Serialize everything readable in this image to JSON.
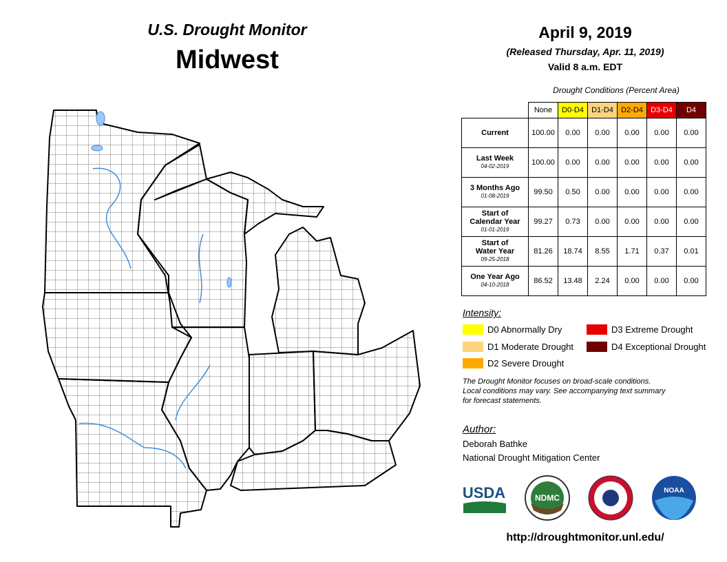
{
  "header": {
    "title": "U.S. Drought Monitor",
    "region": "Midwest"
  },
  "date": {
    "date": "April 9, 2019",
    "released": "(Released Thursday, Apr. 11, 2019)",
    "valid": "Valid 8 a.m. EDT"
  },
  "table": {
    "caption": "Drought Conditions (Percent Area)",
    "columns": [
      "None",
      "D0-D4",
      "D1-D4",
      "D2-D4",
      "D3-D4",
      "D4"
    ],
    "column_colors": [
      "#ffffff",
      "#ffff00",
      "#fcd37f",
      "#ffaa00",
      "#e60000",
      "#730000"
    ],
    "rows": [
      {
        "label": [
          "Current"
        ],
        "values": [
          "100.00",
          "0.00",
          "0.00",
          "0.00",
          "0.00",
          "0.00"
        ]
      },
      {
        "label": [
          "Last Week"
        ],
        "date": "04-02-2019",
        "values": [
          "100.00",
          "0.00",
          "0.00",
          "0.00",
          "0.00",
          "0.00"
        ]
      },
      {
        "label": [
          "3 Months Ago"
        ],
        "date": "01-08-2019",
        "values": [
          "99.50",
          "0.50",
          "0.00",
          "0.00",
          "0.00",
          "0.00"
        ]
      },
      {
        "label": [
          "Start of",
          "Calendar Year"
        ],
        "date": "01-01-2019",
        "values": [
          "99.27",
          "0.73",
          "0.00",
          "0.00",
          "0.00",
          "0.00"
        ]
      },
      {
        "label": [
          "Start of",
          "Water Year"
        ],
        "date": "09-25-2018",
        "values": [
          "81.26",
          "18.74",
          "8.55",
          "1.71",
          "0.37",
          "0.01"
        ]
      },
      {
        "label": [
          "One Year Ago"
        ],
        "date": "04-10-2018",
        "values": [
          "86.52",
          "13.48",
          "2.24",
          "0.00",
          "0.00",
          "0.00"
        ]
      }
    ]
  },
  "intensity": {
    "title": "Intensity:",
    "items": [
      {
        "label": "D0 Abnormally Dry",
        "color": "#ffff00"
      },
      {
        "label": "D1 Moderate Drought",
        "color": "#fcd37f"
      },
      {
        "label": "D2 Severe Drought",
        "color": "#ffaa00"
      },
      {
        "label": "D3 Extreme Drought",
        "color": "#e60000"
      },
      {
        "label": "D4 Exceptional Drought",
        "color": "#730000"
      }
    ]
  },
  "note": [
    "The Drought Monitor focuses on broad-scale conditions.",
    "Local conditions may vary. See accompanying text summary",
    "for forecast statements."
  ],
  "author": {
    "label": "Author:",
    "name": "Deborah Bathke",
    "organization": "National Drought Mitigation Center"
  },
  "logos": [
    "USDA",
    "NDMC",
    "NOAA"
  ],
  "url": "http://droughtmonitor.unl.edu/"
}
